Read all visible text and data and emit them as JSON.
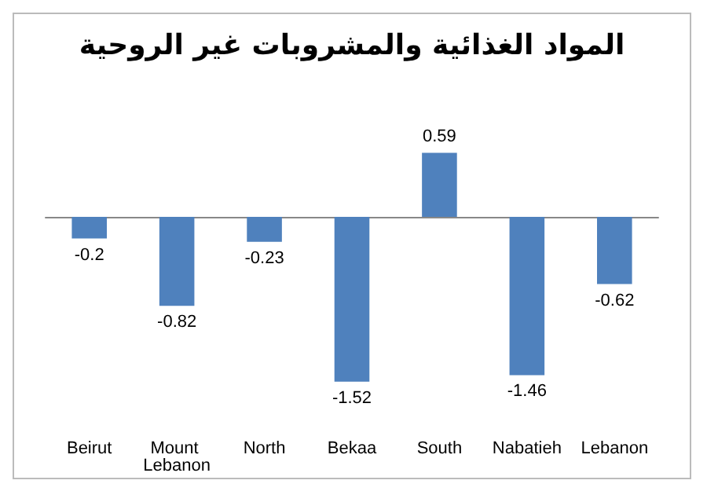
{
  "chart_data": {
    "type": "bar",
    "title": "المواد الغذائية والمشروبات غير الروحية",
    "categories": [
      "Beirut",
      "Mount Lebanon",
      "North",
      "Bekaa",
      "South",
      "Nabatieh",
      "Lebanon"
    ],
    "values": [
      -0.2,
      -0.82,
      -0.23,
      -1.52,
      0.59,
      -1.46,
      -0.62
    ],
    "color": "#4f81bd",
    "data_labels": true,
    "grid": false
  }
}
